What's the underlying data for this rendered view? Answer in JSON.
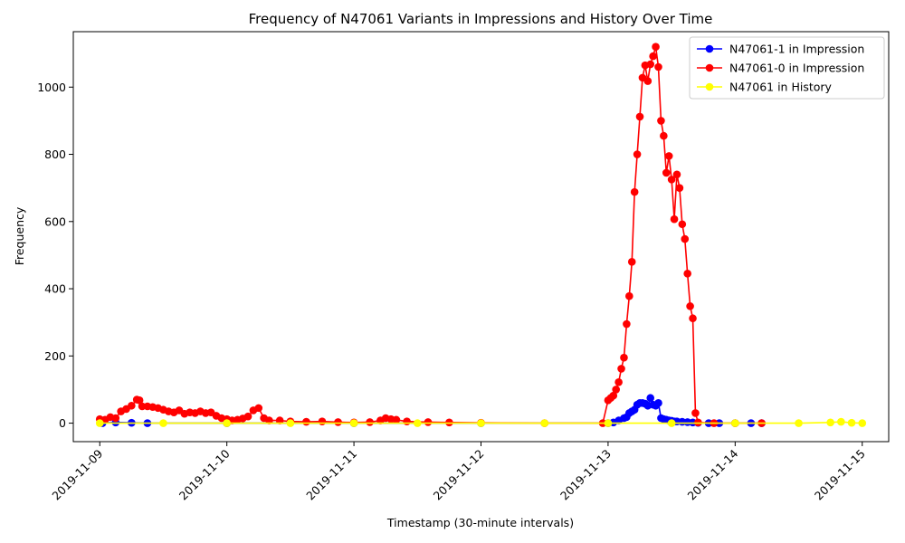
{
  "chart_data": {
    "type": "line",
    "title": "Frequency of N47061 Variants in Impressions and History Over Time",
    "xlabel": "Timestamp (30-minute intervals)",
    "ylabel": "Frequency",
    "xlim": [
      "2019-11-08T19:00",
      "2019-11-15T05:00"
    ],
    "ylim": [
      -55,
      1165
    ],
    "x_ticks": [
      "2019-11-09",
      "2019-11-10",
      "2019-11-11",
      "2019-11-12",
      "2019-11-13",
      "2019-11-14",
      "2019-11-15"
    ],
    "y_ticks": [
      0,
      200,
      400,
      600,
      800,
      1000
    ],
    "grid": false,
    "legend_position": "top-right",
    "series": [
      {
        "name": "N47061-1 in Impression",
        "color": "#0000ff",
        "points": [
          [
            "2019-11-09T00:30",
            0
          ],
          [
            "2019-11-09T03:00",
            2
          ],
          [
            "2019-11-09T06:00",
            1
          ],
          [
            "2019-11-09T09:00",
            0
          ],
          [
            "2019-11-10T00:00",
            0
          ],
          [
            "2019-11-11T00:00",
            0
          ],
          [
            "2019-11-12T00:00",
            0
          ],
          [
            "2019-11-13T00:00",
            0
          ],
          [
            "2019-11-13T01:00",
            2
          ],
          [
            "2019-11-13T02:00",
            8
          ],
          [
            "2019-11-13T03:00",
            15
          ],
          [
            "2019-11-13T03:30",
            18
          ],
          [
            "2019-11-13T04:00",
            30
          ],
          [
            "2019-11-13T04:30",
            35
          ],
          [
            "2019-11-13T05:00",
            40
          ],
          [
            "2019-11-13T05:30",
            55
          ],
          [
            "2019-11-13T06:00",
            60
          ],
          [
            "2019-11-13T06:30",
            60
          ],
          [
            "2019-11-13T07:00",
            58
          ],
          [
            "2019-11-13T07:30",
            52
          ],
          [
            "2019-11-13T08:00",
            75
          ],
          [
            "2019-11-13T08:30",
            55
          ],
          [
            "2019-11-13T09:00",
            52
          ],
          [
            "2019-11-13T09:30",
            60
          ],
          [
            "2019-11-13T10:00",
            15
          ],
          [
            "2019-11-13T10:30",
            12
          ],
          [
            "2019-11-13T11:00",
            10
          ],
          [
            "2019-11-13T11:30",
            8
          ],
          [
            "2019-11-13T12:00",
            7
          ],
          [
            "2019-11-13T12:30",
            5
          ],
          [
            "2019-11-13T13:00",
            5
          ],
          [
            "2019-11-13T14:00",
            4
          ],
          [
            "2019-11-13T15:00",
            3
          ],
          [
            "2019-11-13T16:00",
            2
          ],
          [
            "2019-11-13T17:00",
            1
          ],
          [
            "2019-11-13T19:00",
            0
          ],
          [
            "2019-11-13T21:00",
            0
          ],
          [
            "2019-11-14T00:00",
            0
          ],
          [
            "2019-11-14T03:00",
            0
          ],
          [
            "2019-11-14T05:00",
            0
          ]
        ]
      },
      {
        "name": "N47061-0 in Impression",
        "color": "#ff0000",
        "points": [
          [
            "2019-11-09T00:00",
            12
          ],
          [
            "2019-11-09T01:00",
            10
          ],
          [
            "2019-11-09T02:00",
            18
          ],
          [
            "2019-11-09T03:00",
            15
          ],
          [
            "2019-11-09T04:00",
            35
          ],
          [
            "2019-11-09T05:00",
            42
          ],
          [
            "2019-11-09T06:00",
            52
          ],
          [
            "2019-11-09T07:00",
            70
          ],
          [
            "2019-11-09T07:30",
            68
          ],
          [
            "2019-11-09T08:00",
            50
          ],
          [
            "2019-11-09T09:00",
            50
          ],
          [
            "2019-11-09T10:00",
            48
          ],
          [
            "2019-11-09T11:00",
            45
          ],
          [
            "2019-11-09T12:00",
            40
          ],
          [
            "2019-11-09T13:00",
            35
          ],
          [
            "2019-11-09T14:00",
            32
          ],
          [
            "2019-11-09T15:00",
            38
          ],
          [
            "2019-11-09T16:00",
            28
          ],
          [
            "2019-11-09T17:00",
            32
          ],
          [
            "2019-11-09T18:00",
            30
          ],
          [
            "2019-11-09T19:00",
            35
          ],
          [
            "2019-11-09T20:00",
            30
          ],
          [
            "2019-11-09T21:00",
            32
          ],
          [
            "2019-11-09T22:00",
            22
          ],
          [
            "2019-11-09T23:00",
            15
          ],
          [
            "2019-11-10T00:00",
            12
          ],
          [
            "2019-11-10T01:00",
            8
          ],
          [
            "2019-11-10T02:00",
            10
          ],
          [
            "2019-11-10T03:00",
            14
          ],
          [
            "2019-11-10T04:00",
            20
          ],
          [
            "2019-11-10T05:00",
            38
          ],
          [
            "2019-11-10T06:00",
            45
          ],
          [
            "2019-11-10T07:00",
            15
          ],
          [
            "2019-11-10T08:00",
            8
          ],
          [
            "2019-11-10T10:00",
            8
          ],
          [
            "2019-11-10T12:00",
            5
          ],
          [
            "2019-11-10T15:00",
            4
          ],
          [
            "2019-11-10T18:00",
            5
          ],
          [
            "2019-11-10T21:00",
            3
          ],
          [
            "2019-11-11T00:00",
            2
          ],
          [
            "2019-11-11T03:00",
            3
          ],
          [
            "2019-11-11T05:00",
            8
          ],
          [
            "2019-11-11T06:00",
            15
          ],
          [
            "2019-11-11T07:00",
            12
          ],
          [
            "2019-11-11T08:00",
            10
          ],
          [
            "2019-11-11T10:00",
            5
          ],
          [
            "2019-11-11T14:00",
            3
          ],
          [
            "2019-11-11T18:00",
            2
          ],
          [
            "2019-11-12T00:00",
            1
          ],
          [
            "2019-11-12T12:00",
            0
          ],
          [
            "2019-11-12T23:00",
            0
          ],
          [
            "2019-11-13T00:00",
            68
          ],
          [
            "2019-11-13T00:30",
            75
          ],
          [
            "2019-11-13T01:00",
            82
          ],
          [
            "2019-11-13T01:30",
            100
          ],
          [
            "2019-11-13T02:00",
            122
          ],
          [
            "2019-11-13T02:30",
            162
          ],
          [
            "2019-11-13T03:00",
            195
          ],
          [
            "2019-11-13T03:30",
            295
          ],
          [
            "2019-11-13T04:00",
            378
          ],
          [
            "2019-11-13T04:30",
            480
          ],
          [
            "2019-11-13T05:00",
            688
          ],
          [
            "2019-11-13T05:30",
            800
          ],
          [
            "2019-11-13T06:00",
            912
          ],
          [
            "2019-11-13T06:30",
            1028
          ],
          [
            "2019-11-13T07:00",
            1065
          ],
          [
            "2019-11-13T07:30",
            1018
          ],
          [
            "2019-11-13T08:00",
            1068
          ],
          [
            "2019-11-13T08:30",
            1092
          ],
          [
            "2019-11-13T09:00",
            1120
          ],
          [
            "2019-11-13T09:30",
            1060
          ],
          [
            "2019-11-13T10:00",
            900
          ],
          [
            "2019-11-13T10:30",
            855
          ],
          [
            "2019-11-13T11:00",
            745
          ],
          [
            "2019-11-13T11:30",
            795
          ],
          [
            "2019-11-13T12:00",
            725
          ],
          [
            "2019-11-13T12:30",
            607
          ],
          [
            "2019-11-13T13:00",
            740
          ],
          [
            "2019-11-13T13:30",
            700
          ],
          [
            "2019-11-13T14:00",
            592
          ],
          [
            "2019-11-13T14:30",
            548
          ],
          [
            "2019-11-13T15:00",
            445
          ],
          [
            "2019-11-13T15:30",
            348
          ],
          [
            "2019-11-13T16:00",
            312
          ],
          [
            "2019-11-13T16:30",
            30
          ],
          [
            "2019-11-13T17:00",
            2
          ],
          [
            "2019-11-13T20:00",
            0
          ],
          [
            "2019-11-14T00:00",
            0
          ],
          [
            "2019-11-14T05:00",
            0
          ]
        ]
      },
      {
        "name": "N47061 in History",
        "color": "#ffff00",
        "points": [
          [
            "2019-11-09T00:00",
            0
          ],
          [
            "2019-11-09T12:00",
            0
          ],
          [
            "2019-11-10T00:00",
            0
          ],
          [
            "2019-11-10T12:00",
            0
          ],
          [
            "2019-11-11T00:00",
            0
          ],
          [
            "2019-11-11T12:00",
            0
          ],
          [
            "2019-11-12T00:00",
            0
          ],
          [
            "2019-11-12T12:00",
            0
          ],
          [
            "2019-11-13T00:00",
            0
          ],
          [
            "2019-11-13T12:00",
            0
          ],
          [
            "2019-11-14T00:00",
            0
          ],
          [
            "2019-11-14T12:00",
            0
          ],
          [
            "2019-11-14T18:00",
            2
          ],
          [
            "2019-11-14T20:00",
            4
          ],
          [
            "2019-11-14T22:00",
            1
          ],
          [
            "2019-11-15T00:00",
            0
          ]
        ]
      }
    ]
  }
}
